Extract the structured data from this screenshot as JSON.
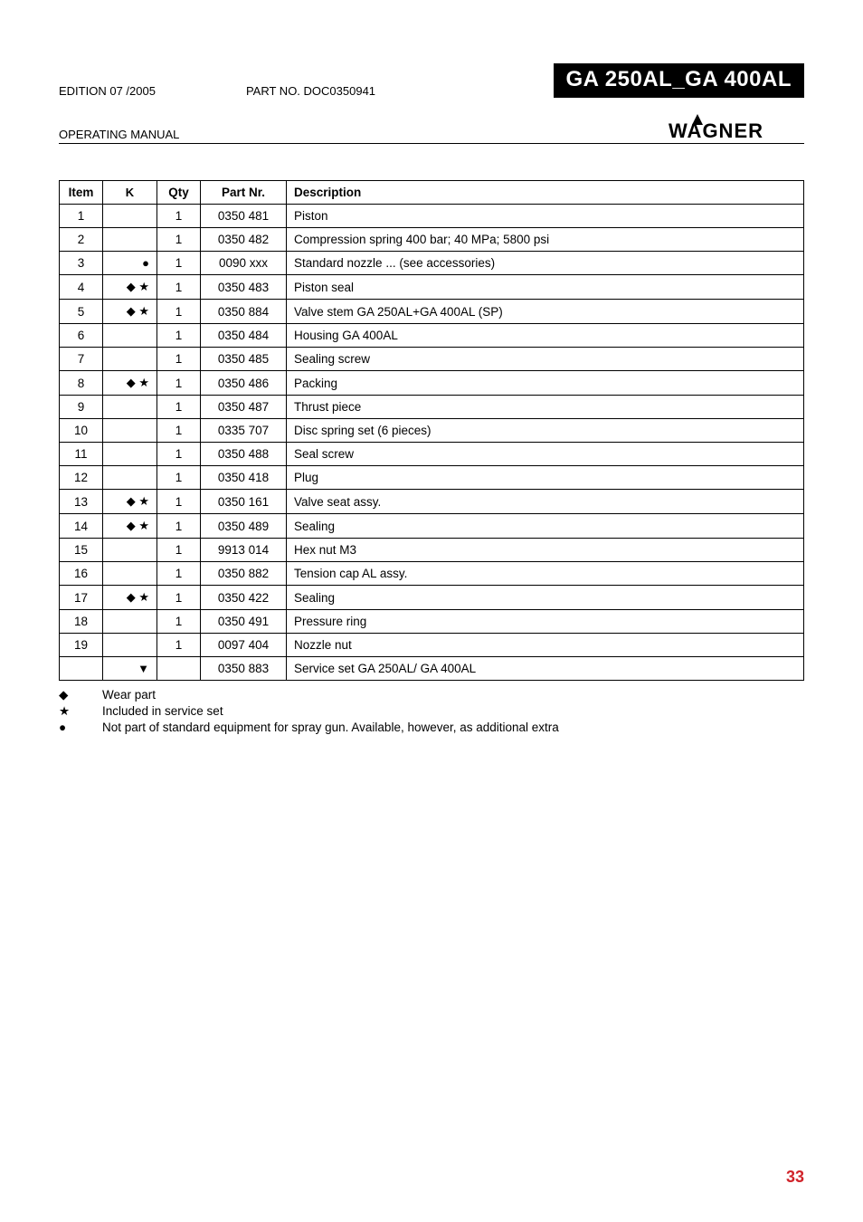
{
  "header": {
    "edition": "EDITION 07 /2005",
    "part_no": "PART NO. DOC0350941",
    "title": "GA 250AL_GA 400AL",
    "op_manual": "OPERATING MANUAL",
    "brand": "WAGNER"
  },
  "symbols": {
    "wear": "◆",
    "service": "★",
    "extra": "●",
    "set": "▼"
  },
  "table": {
    "columns": [
      "Item",
      "K",
      "Qty",
      "Part Nr.",
      "Description"
    ],
    "rows": [
      {
        "item": "1",
        "k": "",
        "qty": "1",
        "pn": "0350 481",
        "desc": "Piston"
      },
      {
        "item": "2",
        "k": "",
        "qty": "1",
        "pn": "0350 482",
        "desc": "Compression spring 400 bar; 40 MPa; 5800 psi"
      },
      {
        "item": "3",
        "k": "●",
        "qty": "1",
        "pn": "0090 xxx",
        "desc": "Standard nozzle ... (see accessories)"
      },
      {
        "item": "4",
        "k": "◆ ★",
        "qty": "1",
        "pn": "0350 483",
        "desc": "Piston seal"
      },
      {
        "item": "5",
        "k": "◆ ★",
        "qty": "1",
        "pn": "0350 884",
        "desc": "Valve stem GA 250AL+GA 400AL (SP)"
      },
      {
        "item": "6",
        "k": "",
        "qty": "1",
        "pn": "0350 484",
        "desc": "Housing GA 400AL"
      },
      {
        "item": "7",
        "k": "",
        "qty": "1",
        "pn": "0350 485",
        "desc": "Sealing screw"
      },
      {
        "item": "8",
        "k": "◆ ★",
        "qty": "1",
        "pn": "0350 486",
        "desc": "Packing"
      },
      {
        "item": "9",
        "k": "",
        "qty": "1",
        "pn": "0350 487",
        "desc": "Thrust piece"
      },
      {
        "item": "10",
        "k": "",
        "qty": "1",
        "pn": "0335 707",
        "desc": "Disc spring set (6 pieces)"
      },
      {
        "item": "11",
        "k": "",
        "qty": "1",
        "pn": "0350 488",
        "desc": "Seal screw"
      },
      {
        "item": "12",
        "k": "",
        "qty": "1",
        "pn": "0350 418",
        "desc": "Plug"
      },
      {
        "item": "13",
        "k": "◆ ★",
        "qty": "1",
        "pn": "0350 161",
        "desc": "Valve seat assy."
      },
      {
        "item": "14",
        "k": "◆ ★",
        "qty": "1",
        "pn": "0350 489",
        "desc": "Sealing"
      },
      {
        "item": "15",
        "k": "",
        "qty": "1",
        "pn": "9913 014",
        "desc": "Hex nut M3"
      },
      {
        "item": "16",
        "k": "",
        "qty": "1",
        "pn": "0350 882",
        "desc": "Tension cap AL assy."
      },
      {
        "item": "17",
        "k": "◆ ★",
        "qty": "1",
        "pn": "0350 422",
        "desc": "Sealing"
      },
      {
        "item": "18",
        "k": "",
        "qty": "1",
        "pn": "0350 491",
        "desc": "Pressure ring"
      },
      {
        "item": "19",
        "k": "",
        "qty": "1",
        "pn": "0097 404",
        "desc": "Nozzle nut"
      },
      {
        "item": "",
        "k": "▼",
        "qty": "",
        "pn": "0350 883",
        "desc": "Service set GA 250AL/ GA 400AL"
      }
    ]
  },
  "legend": [
    {
      "sym": "◆",
      "text": "Wear part"
    },
    {
      "sym": "★",
      "text": "Included in service set"
    },
    {
      "sym": "●",
      "text": "Not part of standard equipment for spray gun. Available, however, as additional extra"
    }
  ],
  "page_number": "33",
  "colors": {
    "page_number": "#d1232a",
    "banner_bg": "#000000",
    "banner_fg": "#ffffff",
    "border": "#000000"
  }
}
